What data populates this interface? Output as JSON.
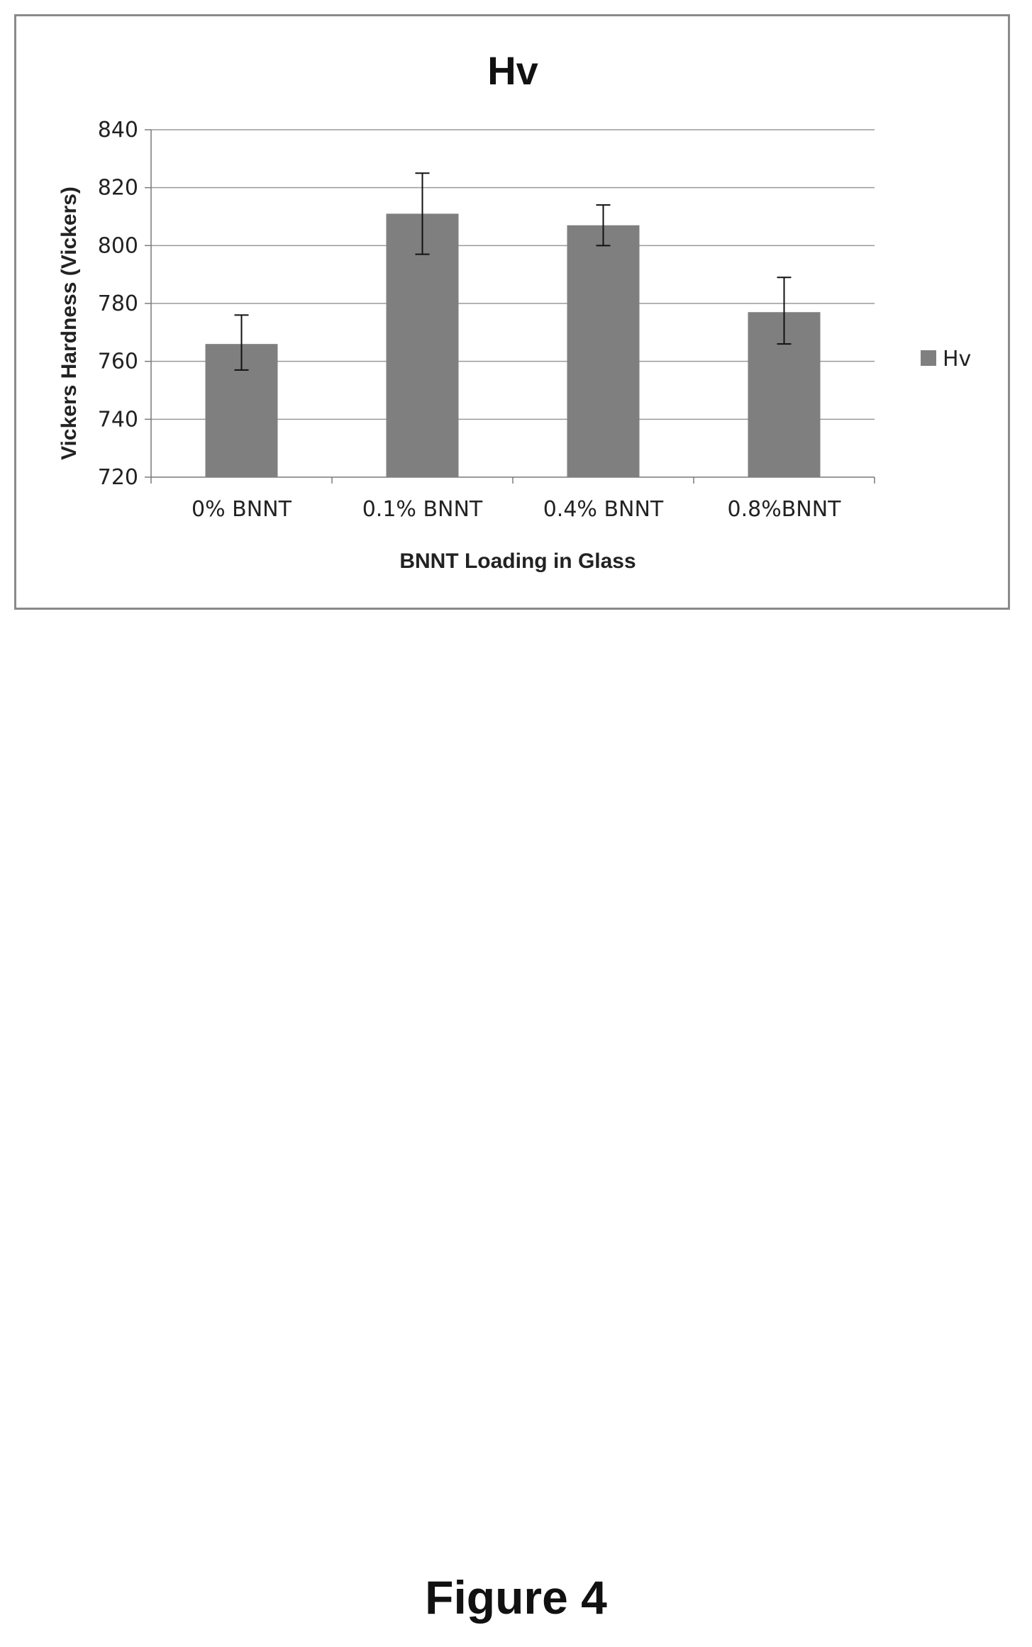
{
  "chart_data": {
    "type": "bar",
    "title": "Hv",
    "xlabel": "BNNT Loading in Glass",
    "ylabel": "Vickers Hardness (Vickers)",
    "categories": [
      "0% BNNT",
      "0.1% BNNT",
      "0.4% BNNT",
      "0.8%BNNT"
    ],
    "series": [
      {
        "name": "Hv",
        "values": [
          766,
          811,
          807,
          777
        ],
        "error_low": [
          757,
          797,
          800,
          766
        ],
        "error_high": [
          776,
          825,
          814,
          789
        ],
        "color": "#7f7f7f"
      }
    ],
    "ylim": [
      720,
      840
    ],
    "yticks": [
      720,
      740,
      760,
      780,
      800,
      820,
      840
    ],
    "grid": true,
    "legend": "right"
  },
  "caption": "Figure 4"
}
